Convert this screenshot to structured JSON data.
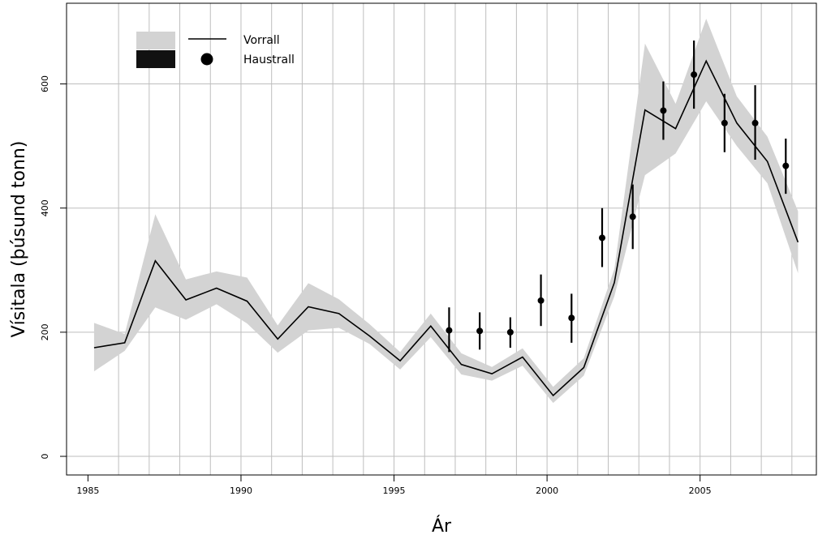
{
  "chart_data": {
    "type": "line",
    "title": "",
    "xlabel": "Ár",
    "ylabel": "Vísitala (þúsund tonn)",
    "xlim": [
      1984.3,
      2008.8
    ],
    "ylim": [
      -30,
      730
    ],
    "xticks": [
      1985,
      1990,
      1995,
      2000,
      2005
    ],
    "yticks": [
      0,
      200,
      400,
      600
    ],
    "vertical_gridlines": [
      1986.0,
      1987.0,
      1988.0,
      1989.0,
      1990.0,
      1991.0,
      1992.0,
      1993.0,
      1994.0,
      1995.0,
      1996.0,
      1997.0,
      1998.0,
      1999.0,
      2000.0,
      2001.0,
      2002.0,
      2003.0,
      2004.0,
      2005.0,
      2006.0,
      2007.0,
      2008.0
    ],
    "horizontal_gridlines": [
      0,
      200,
      400,
      600
    ],
    "legend": {
      "position": "top-left",
      "entries": [
        {
          "label": "Vorrall",
          "symbol": "line-with-band"
        },
        {
          "label": "Haustrall",
          "symbol": "point-with-errorbar"
        }
      ]
    },
    "colors": {
      "band": "#d3d3d3",
      "line": "#000000",
      "points": "#000000",
      "grid": "#bebebe"
    },
    "series": [
      {
        "name": "Vorrall",
        "kind": "line-with-band",
        "x": [
          1985.2,
          1986.2,
          1987.2,
          1988.2,
          1989.2,
          1990.2,
          1991.2,
          1992.2,
          1993.2,
          1994.2,
          1995.2,
          1996.2,
          1997.2,
          1998.2,
          1999.2,
          2000.2,
          2001.2,
          2002.2,
          2003.2,
          2004.2,
          2005.2,
          2006.2,
          2007.2,
          2008.2
        ],
        "y": [
          175,
          183,
          315,
          252,
          271,
          250,
          189,
          241,
          230,
          194,
          154,
          210,
          148,
          133,
          160,
          98,
          143,
          280,
          558,
          528,
          637,
          537,
          475,
          345
        ],
        "lower": [
          137,
          170,
          240,
          220,
          245,
          214,
          167,
          203,
          207,
          181,
          140,
          192,
          132,
          122,
          146,
          86,
          130,
          258,
          453,
          488,
          572,
          500,
          440,
          295
        ],
        "upper": [
          215,
          197,
          390,
          285,
          298,
          288,
          211,
          279,
          253,
          213,
          168,
          230,
          166,
          144,
          174,
          112,
          158,
          302,
          665,
          568,
          705,
          580,
          515,
          395
        ]
      },
      {
        "name": "Haustrall",
        "kind": "point-with-errorbar",
        "x": [
          1996.8,
          1997.8,
          1998.8,
          1999.8,
          2000.8,
          2001.8,
          2002.8,
          2003.8,
          2004.8,
          2005.8,
          2006.8,
          2007.8
        ],
        "y": [
          203,
          202,
          200,
          251,
          223,
          352,
          386,
          557,
          615,
          537,
          537,
          468
        ],
        "lower": [
          168,
          172,
          175,
          210,
          183,
          305,
          334,
          510,
          560,
          490,
          478,
          423
        ],
        "upper": [
          240,
          232,
          224,
          293,
          262,
          400,
          438,
          604,
          670,
          584,
          598,
          512
        ]
      }
    ]
  }
}
